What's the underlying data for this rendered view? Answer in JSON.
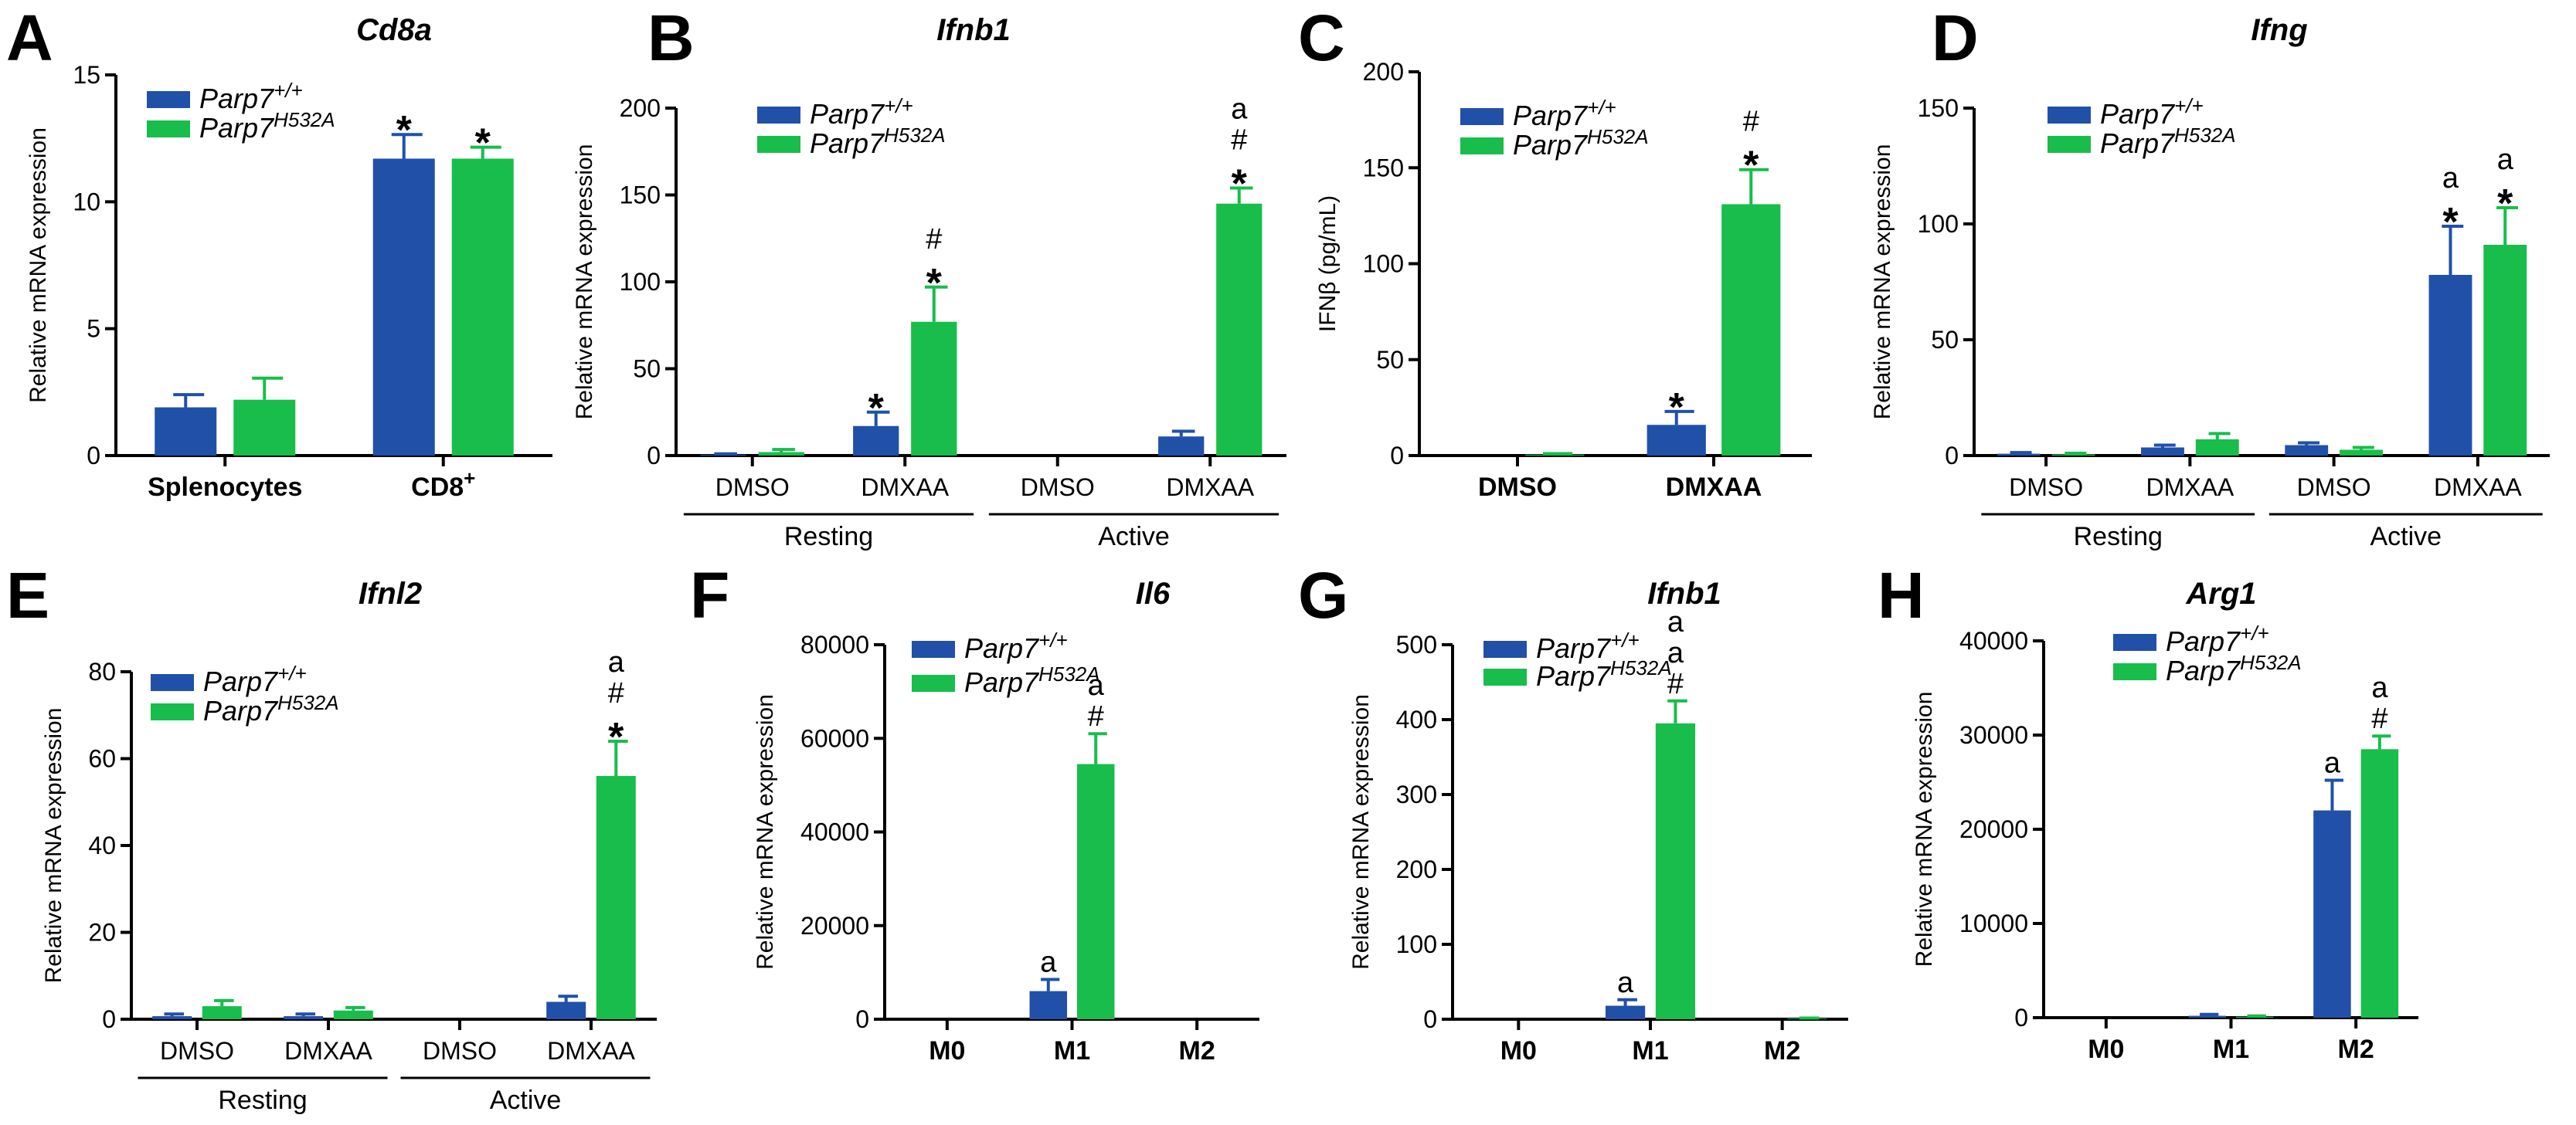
{
  "colors": {
    "wt": "#2150a8",
    "mut": "#18bd4b",
    "axis": "#000000"
  },
  "legend": {
    "base": "Parp7",
    "wt_sup": "+/+",
    "mut_sup": "H532A"
  },
  "chart_data": [
    {
      "panel": "A",
      "type": "bar",
      "title": "Cd8a",
      "ylabel": "Relative mRNA expression",
      "ylim": [
        0,
        15
      ],
      "yticks": [
        0,
        5,
        10,
        15
      ],
      "categories": [
        "Splenocytes",
        "CD8"
      ],
      "category_sup": [
        "",
        "+"
      ],
      "category_style": "bold",
      "series": [
        {
          "name": "Parp7+/+",
          "values": [
            1.9,
            11.7
          ],
          "errors": [
            0.5,
            0.95
          ]
        },
        {
          "name": "Parp7H532A",
          "values": [
            2.2,
            11.7
          ],
          "errors": [
            0.85,
            0.45
          ]
        }
      ],
      "annotations": [
        {
          "cat": 1,
          "series": 0,
          "lines": [
            "*"
          ]
        },
        {
          "cat": 1,
          "series": 1,
          "lines": [
            "*"
          ]
        }
      ],
      "groups": []
    },
    {
      "panel": "B",
      "type": "bar",
      "title": "Ifnb1",
      "ylabel": "Relative mRNA expression",
      "ylim": [
        0,
        200
      ],
      "yticks": [
        0,
        50,
        100,
        150,
        200
      ],
      "categories": [
        "DMSO",
        "DMXAA",
        "DMSO",
        "DMXAA"
      ],
      "category_sup": [
        "",
        "",
        "",
        ""
      ],
      "category_style": "normal",
      "series": [
        {
          "name": "Parp7+/+",
          "values": [
            0.5,
            17,
            0,
            11
          ],
          "errors": [
            0.5,
            8,
            0,
            3
          ]
        },
        {
          "name": "Parp7H532A",
          "values": [
            2,
            77,
            0,
            145
          ],
          "errors": [
            1.5,
            20,
            0,
            9
          ]
        }
      ],
      "annotations": [
        {
          "cat": 1,
          "series": 0,
          "lines": [
            "*"
          ]
        },
        {
          "cat": 1,
          "series": 1,
          "lines": [
            "#",
            "*"
          ]
        },
        {
          "cat": 3,
          "series": 1,
          "lines": [
            "a",
            "#",
            "*"
          ]
        }
      ],
      "groups": [
        {
          "label": "Resting",
          "from": 0,
          "to": 1
        },
        {
          "label": "Active",
          "from": 2,
          "to": 3
        }
      ]
    },
    {
      "panel": "C",
      "type": "bar",
      "title": "",
      "ylabel": "IFNβ (pg/mL)",
      "ylim": [
        0,
        200
      ],
      "yticks": [
        0,
        50,
        100,
        150,
        200
      ],
      "categories": [
        "DMSO",
        "DMXAA"
      ],
      "category_sup": [
        "",
        ""
      ],
      "category_style": "bold",
      "series": [
        {
          "name": "Parp7+/+",
          "values": [
            0,
            16
          ],
          "errors": [
            0,
            7
          ]
        },
        {
          "name": "Parp7H532A",
          "values": [
            0.5,
            131
          ],
          "errors": [
            0.5,
            18
          ]
        }
      ],
      "annotations": [
        {
          "cat": 1,
          "series": 0,
          "lines": [
            "*"
          ]
        },
        {
          "cat": 1,
          "series": 1,
          "lines": [
            "#",
            "*"
          ]
        }
      ],
      "groups": []
    },
    {
      "panel": "D",
      "type": "bar",
      "title": "Ifng",
      "ylabel": "Relative mRNA expression",
      "ylim": [
        0,
        150
      ],
      "yticks": [
        0,
        50,
        100,
        150
      ],
      "categories": [
        "DMSO",
        "DMXAA",
        "DMSO",
        "DMXAA"
      ],
      "category_sup": [
        "",
        "",
        "",
        ""
      ],
      "category_style": "normal",
      "series": [
        {
          "name": "Parp7+/+",
          "values": [
            0.8,
            3.5,
            4.5,
            78
          ],
          "errors": [
            0.5,
            1,
            1,
            21
          ]
        },
        {
          "name": "Parp7H532A",
          "values": [
            0.5,
            7,
            2.5,
            91
          ],
          "errors": [
            0.5,
            2.5,
            1,
            16
          ]
        }
      ],
      "annotations": [
        {
          "cat": 3,
          "series": 0,
          "lines": [
            "a",
            "*"
          ]
        },
        {
          "cat": 3,
          "series": 1,
          "lines": [
            "a",
            "*"
          ]
        }
      ],
      "groups": [
        {
          "label": "Resting",
          "from": 0,
          "to": 1
        },
        {
          "label": "Active",
          "from": 2,
          "to": 3
        }
      ]
    },
    {
      "panel": "E",
      "type": "bar",
      "title": "Ifnl2",
      "ylabel": "Relative mRNA expression",
      "ylim": [
        0,
        80
      ],
      "yticks": [
        0,
        20,
        40,
        60,
        80
      ],
      "categories": [
        "DMSO",
        "DMXAA",
        "DMSO",
        "DMXAA"
      ],
      "category_sup": [
        "",
        "",
        "",
        ""
      ],
      "category_style": "normal",
      "series": [
        {
          "name": "Parp7+/+",
          "values": [
            0.7,
            0.7,
            0,
            4
          ],
          "errors": [
            0.5,
            0.5,
            0,
            1.3
          ]
        },
        {
          "name": "Parp7H532A",
          "values": [
            3,
            2,
            0,
            56
          ],
          "errors": [
            1.3,
            0.7,
            0,
            8
          ]
        }
      ],
      "annotations": [
        {
          "cat": 3,
          "series": 1,
          "lines": [
            "a",
            "#",
            "*"
          ]
        }
      ],
      "groups": [
        {
          "label": "Resting",
          "from": 0,
          "to": 1
        },
        {
          "label": "Active",
          "from": 2,
          "to": 3
        }
      ]
    },
    {
      "panel": "F",
      "type": "bar",
      "title": "Il6",
      "ylabel": "Relative mRNA expression",
      "ylim": [
        0,
        80000
      ],
      "yticks": [
        0,
        20000,
        40000,
        60000,
        80000
      ],
      "categories": [
        "M0",
        "M1",
        "M2"
      ],
      "category_sup": [
        "",
        "",
        ""
      ],
      "category_style": "bold",
      "series": [
        {
          "name": "Parp7+/+",
          "values": [
            0,
            6000,
            0
          ],
          "errors": [
            0,
            2500,
            0
          ]
        },
        {
          "name": "Parp7H532A",
          "values": [
            0,
            54500,
            0
          ],
          "errors": [
            0,
            6500,
            0
          ]
        }
      ],
      "annotations": [
        {
          "cat": 1,
          "series": 0,
          "lines": [
            "a"
          ]
        },
        {
          "cat": 1,
          "series": 1,
          "lines": [
            "a",
            "#"
          ]
        }
      ],
      "groups": []
    },
    {
      "panel": "G",
      "type": "bar",
      "title": "Ifnb1",
      "ylabel": "Relative mRNA expression",
      "ylim": [
        0,
        500
      ],
      "yticks": [
        0,
        100,
        200,
        300,
        400,
        500
      ],
      "categories": [
        "M0",
        "M1",
        "M2"
      ],
      "category_sup": [
        "",
        "",
        ""
      ],
      "category_style": "bold",
      "series": [
        {
          "name": "Parp7+/+",
          "values": [
            0,
            18,
            0
          ],
          "errors": [
            0,
            8,
            0
          ]
        },
        {
          "name": "Parp7H532A",
          "values": [
            0,
            395,
            1
          ],
          "errors": [
            0,
            30,
            0.5
          ]
        }
      ],
      "annotations": [
        {
          "cat": 1,
          "series": 0,
          "lines": [
            "a"
          ]
        },
        {
          "cat": 1,
          "series": 1,
          "lines": [
            "a",
            "a",
            "#"
          ]
        }
      ],
      "groups": []
    },
    {
      "panel": "H",
      "type": "bar",
      "title": "Arg1",
      "ylabel": "Relative mRNA expression",
      "ylim": [
        0,
        40000
      ],
      "yticks": [
        0,
        10000,
        20000,
        30000,
        40000
      ],
      "categories": [
        "M0",
        "M1",
        "M2"
      ],
      "category_sup": [
        "",
        "",
        ""
      ],
      "category_style": "bold",
      "series": [
        {
          "name": "Parp7+/+",
          "values": [
            0,
            200,
            22000
          ],
          "errors": [
            0,
            150,
            3200
          ]
        },
        {
          "name": "Parp7H532A",
          "values": [
            0,
            100,
            28500
          ],
          "errors": [
            0,
            80,
            1400
          ]
        }
      ],
      "annotations": [
        {
          "cat": 2,
          "series": 0,
          "lines": [
            "a"
          ]
        },
        {
          "cat": 2,
          "series": 1,
          "lines": [
            "a",
            "#"
          ]
        }
      ],
      "groups": []
    }
  ]
}
